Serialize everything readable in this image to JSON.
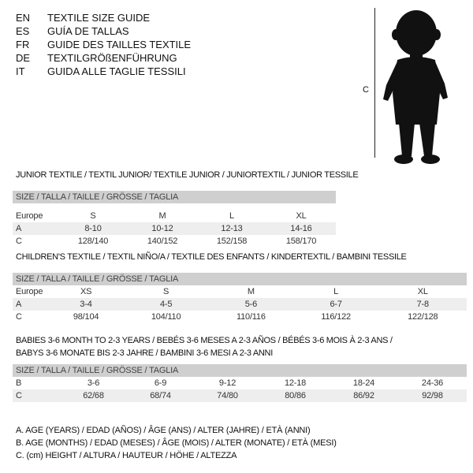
{
  "header": {
    "languages": [
      {
        "code": "EN",
        "title": "TEXTILE SIZE GUIDE"
      },
      {
        "code": "ES",
        "title": "GUÍA DE TALLAS"
      },
      {
        "code": "FR",
        "title": "GUIDE DES TAILLES TEXTILE"
      },
      {
        "code": "DE",
        "title": "TEXTILGRÖßENFÜHRUNG"
      },
      {
        "code": "IT",
        "title": "GUIDA ALLE TAGLIE TESSILI"
      }
    ]
  },
  "figure": {
    "measure_label": "C",
    "icon": "child-silhouette"
  },
  "junior": {
    "title": "JUNIOR TEXTILE / TEXTIL JUNIOR/ TEXTILE JUNIOR / JUNIORTEXTIL / JUNIOR TESSILE",
    "header": "SIZE / TALLA / TAILLE / GRÖSSE / TAGLIA",
    "rows": [
      {
        "label": "Europe",
        "values": [
          "S",
          "M",
          "L",
          "XL"
        ]
      },
      {
        "label": "A",
        "values": [
          "8-10",
          "10-12",
          "12-13",
          "14-16"
        ]
      },
      {
        "label": "C",
        "values": [
          "128/140",
          "140/152",
          "152/158",
          "158/170"
        ]
      }
    ]
  },
  "children": {
    "title": "CHILDREN'S TEXTILE / TEXTIL NIÑO/A / TEXTILE DES ENFANTS / KINDERTEXTIL / BAMBINI TESSILE",
    "header": "SIZE / TALLA / TAILLE / GRÖSSE / TAGLIA",
    "rows": [
      {
        "label": "Europe",
        "values": [
          "XS",
          "S",
          "M",
          "L",
          "XL"
        ]
      },
      {
        "label": "A",
        "values": [
          "3-4",
          "4-5",
          "5-6",
          "6-7",
          "7-8"
        ]
      },
      {
        "label": "C",
        "values": [
          "98/104",
          "104/110",
          "110/116",
          "116/122",
          "122/128"
        ]
      }
    ]
  },
  "babies": {
    "title_line1": "BABIES 3-6 MONTH TO 2-3 YEARS / BEBÉS 3-6 MESES A 2-3 AÑOS / BÉBÉS 3-6 MOIS À 2-3 ANS /",
    "title_line2": "BABYS 3-6 MONATE BIS 2-3 JAHRE / BAMBINI 3-6 MESI A 2-3 ANNI",
    "header": "SIZE / TALLA / TAILLE / GRÖSSE / TAGLIA",
    "rows": [
      {
        "label": "B",
        "values": [
          "3-6",
          "6-9",
          "9-12",
          "12-18",
          "18-24",
          "24-36"
        ]
      },
      {
        "label": "C",
        "values": [
          "62/68",
          "68/74",
          "74/80",
          "80/86",
          "86/92",
          "92/98"
        ]
      }
    ]
  },
  "legend": [
    "A. AGE (YEARS) / EDAD (AÑOS) / ÂGE (ANS) / ALTER (JAHRE) / ETÀ (ANNI)",
    "B. AGE (MONTHS) / EDAD (MESES) / ÂGE (MOIS) / ALTER (MONATE) / ETÀ (MESI)",
    "C. (cm) HEIGHT / ALTURA / HAUTEUR / HÖHE / ALTEZZA"
  ]
}
